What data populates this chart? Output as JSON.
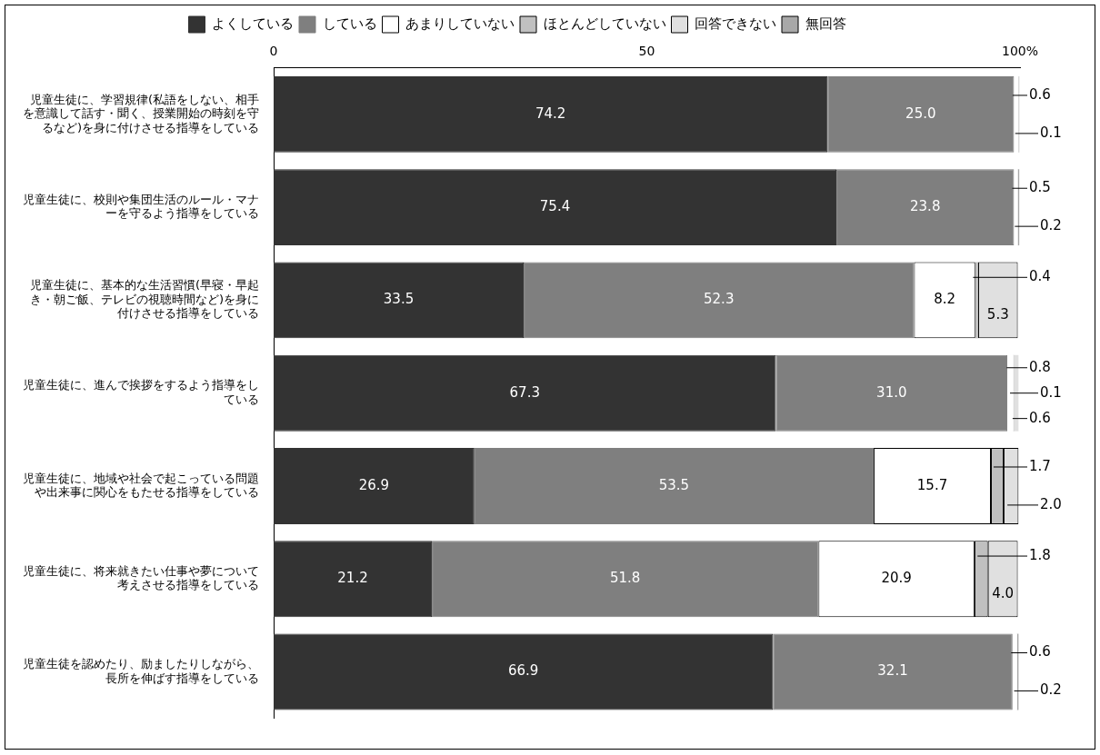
{
  "chart_data": {
    "type": "bar",
    "orientation": "horizontal",
    "stacked": true,
    "categories": [
      "児童生徒に、学習規律(私語をしない、相手を意識して話す・聞く、授業開始の時刻を守るなど)を身に付けさせる指導をしている",
      "児童生徒に、校則や集団生活のルール・マナーを守るよう指導をしている",
      "児童生徒に、基本的な生活習慣(早寝・早起き・朝ご飯、テレビの視聴時間など)を身に付けさせる指導をしている",
      "児童生徒に、進んで挨拶をするよう指導をしている",
      "児童生徒に、地域や社会で起こっている問題や出来事に関心をもたせる指導をしている",
      "児童生徒に、将来就きたい仕事や夢について考えさせる指導をしている",
      "児童生徒を認めたり、励ましたりしながら、長所を伸ばす指導をしている"
    ],
    "series": [
      {
        "name": "よくしている",
        "color": "#333333",
        "values": [
          74.2,
          75.4,
          33.5,
          67.3,
          26.9,
          21.2,
          66.9
        ],
        "value_labels": [
          "74.2",
          "75.4",
          "33.5",
          "67.3",
          "26.9",
          "21.2",
          "66.9"
        ]
      },
      {
        "name": "している",
        "color": "#7f7f7f",
        "values": [
          25.0,
          23.8,
          52.3,
          31.0,
          53.5,
          51.8,
          32.1
        ],
        "value_labels": [
          "25.0",
          "23.8",
          "52.3",
          "31.0",
          "53.5",
          "51.8",
          "32.1"
        ]
      },
      {
        "name": "あまりしていない",
        "color": "#ffffff",
        "values": [
          0.6,
          0.5,
          8.2,
          0.8,
          15.7,
          20.9,
          0.6
        ],
        "value_labels": [
          "0.6",
          "0.5",
          "8.2",
          "0.8",
          "15.7",
          "20.9",
          "0.6"
        ]
      },
      {
        "name": "ほとんどしていない",
        "color": "#c0c0c0",
        "values": [
          null,
          null,
          0.4,
          0.1,
          1.7,
          1.8,
          null
        ],
        "value_labels": [
          null,
          null,
          "0.4",
          "0.1",
          "1.7",
          "1.8",
          null
        ]
      },
      {
        "name": "回答できない",
        "color": "#e0e0e0",
        "values": [
          null,
          null,
          5.3,
          0.6,
          2.0,
          4.0,
          null
        ],
        "value_labels": [
          null,
          null,
          "5.3",
          "0.6",
          "2.0",
          "4.0",
          null
        ]
      },
      {
        "name": "無回答",
        "color": "#a8a8a8",
        "values": [
          0.1,
          0.2,
          null,
          null,
          null,
          null,
          0.2
        ],
        "value_labels": [
          "0.1",
          "0.2",
          null,
          null,
          null,
          null,
          "0.2"
        ]
      }
    ],
    "xlim": [
      0,
      100
    ],
    "xticks": [
      0,
      50,
      {
        "value": 100,
        "label": "100%"
      }
    ],
    "grid": false,
    "legend": "top"
  }
}
